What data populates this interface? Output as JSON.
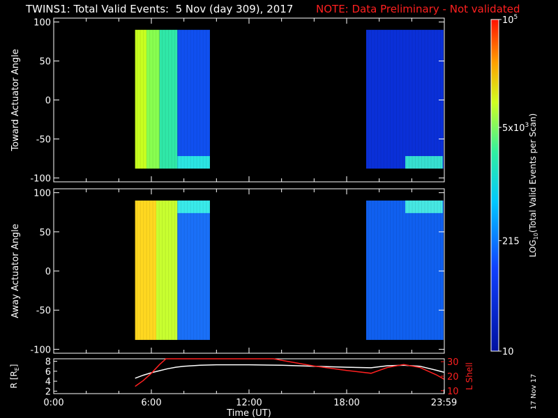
{
  "header": {
    "title": "TWINS1: Total Valid Events:  5 Nov (day 309), 2017",
    "note": "NOTE: Data Preliminary - Not validated",
    "note_color": "#ff2020"
  },
  "stamp": "17 Nov 17",
  "chart_data": [
    {
      "type": "heatmap",
      "ylabel": "Toward Actuator Angle",
      "ylim": [
        -105,
        105
      ],
      "yticks": [
        100,
        50,
        0,
        -50,
        -100
      ],
      "xlim_hours": [
        0,
        24
      ],
      "angle_range": [
        -88,
        90
      ],
      "segments": [
        {
          "start_hr": 5.0,
          "end_hr": 9.6,
          "columns": [
            {
              "from_hr": 5.0,
              "to_hr": 5.7,
              "color": "#c8ff20"
            },
            {
              "from_hr": 5.7,
              "to_hr": 6.5,
              "color": "#88ff50"
            },
            {
              "from_hr": 6.5,
              "to_hr": 7.6,
              "color": "#30e8a8"
            },
            {
              "from_hr": 7.6,
              "to_hr": 9.6,
              "color": "#1050f0"
            }
          ],
          "bottom_band": {
            "from_hr": 7.6,
            "to_hr": 9.6,
            "color": "#30ffe0"
          }
        },
        {
          "start_hr": 19.2,
          "end_hr": 23.95,
          "columns": [
            {
              "from_hr": 19.2,
              "to_hr": 23.95,
              "color": "#0a30d8"
            }
          ],
          "bottom_band": {
            "from_hr": 21.6,
            "to_hr": 23.9,
            "color": "#40ffd0"
          }
        }
      ]
    },
    {
      "type": "heatmap",
      "ylabel": "Away Actuator Angle",
      "ylim": [
        -105,
        105
      ],
      "yticks": [
        100,
        50,
        0,
        -50,
        -100
      ],
      "xlim_hours": [
        0,
        24
      ],
      "angle_range": [
        -88,
        90
      ],
      "segments": [
        {
          "start_hr": 5.0,
          "end_hr": 9.6,
          "columns": [
            {
              "from_hr": 5.0,
              "to_hr": 6.3,
              "color": "#ffd820"
            },
            {
              "from_hr": 6.3,
              "to_hr": 7.6,
              "color": "#c8ff30"
            },
            {
              "from_hr": 7.6,
              "to_hr": 9.6,
              "color": "#1a70f8"
            }
          ],
          "top_band": {
            "from_hr": 7.6,
            "to_hr": 9.6,
            "color": "#40ffe8"
          }
        },
        {
          "start_hr": 19.2,
          "end_hr": 23.95,
          "columns": [
            {
              "from_hr": 19.2,
              "to_hr": 23.95,
              "color": "#1060f0"
            }
          ],
          "top_band": {
            "from_hr": 21.6,
            "to_hr": 23.9,
            "color": "#50ffe0"
          }
        }
      ]
    },
    {
      "type": "line",
      "ylabel_left": "R [RE]",
      "ylabel_left_sub": "E",
      "ylabel_right": "L Shell",
      "ylim_left": [
        1.5,
        8.5
      ],
      "yticks_left": [
        8,
        6,
        4,
        2
      ],
      "ylim_right": [
        8,
        32
      ],
      "yticks_right": [
        30,
        20,
        10
      ],
      "xlabel": "Time (UT)",
      "xticks": [
        "0:00",
        "6:00",
        "12:00",
        "18:00",
        "23:59"
      ],
      "xtick_hours": [
        0,
        6,
        12,
        18,
        23.98
      ],
      "series": [
        {
          "axis": "left",
          "color": "#ffffff",
          "x": [
            5.0,
            5.5,
            6.0,
            6.5,
            7.0,
            7.5,
            8.0,
            9.0,
            10,
            12,
            14,
            16,
            18,
            19.5,
            20.5,
            21.5,
            22.5,
            23.5,
            23.98
          ],
          "y": [
            4.6,
            5.2,
            5.7,
            6.1,
            6.5,
            6.8,
            7.0,
            7.2,
            7.3,
            7.3,
            7.2,
            7.0,
            6.8,
            6.7,
            7.1,
            7.2,
            7.0,
            6.2,
            5.8
          ]
        },
        {
          "axis": "right",
          "color": "#ff2020",
          "x": [
            5.0,
            5.5,
            6.0,
            6.5,
            6.9,
            13.5,
            14.5,
            16,
            18,
            19.5,
            20.5,
            21.5,
            22.5,
            23.5,
            23.98
          ],
          "y": [
            13,
            17,
            22,
            28,
            32,
            32,
            30,
            27,
            24,
            22,
            26,
            28,
            26,
            21,
            18
          ]
        }
      ]
    }
  ],
  "colorbar": {
    "label": "LOG",
    "label_sub": "10",
    "label_rest": "(Total Valid Events per Scan)",
    "log_range": [
      1,
      5
    ],
    "ticks": [
      {
        "label": "10",
        "value": 10
      },
      {
        "label": "215",
        "value": 215
      },
      {
        "label": "5x10",
        "sup": "3",
        "value": 5000
      },
      {
        "label": "10",
        "sup": "5",
        "value": 100000
      }
    ]
  }
}
